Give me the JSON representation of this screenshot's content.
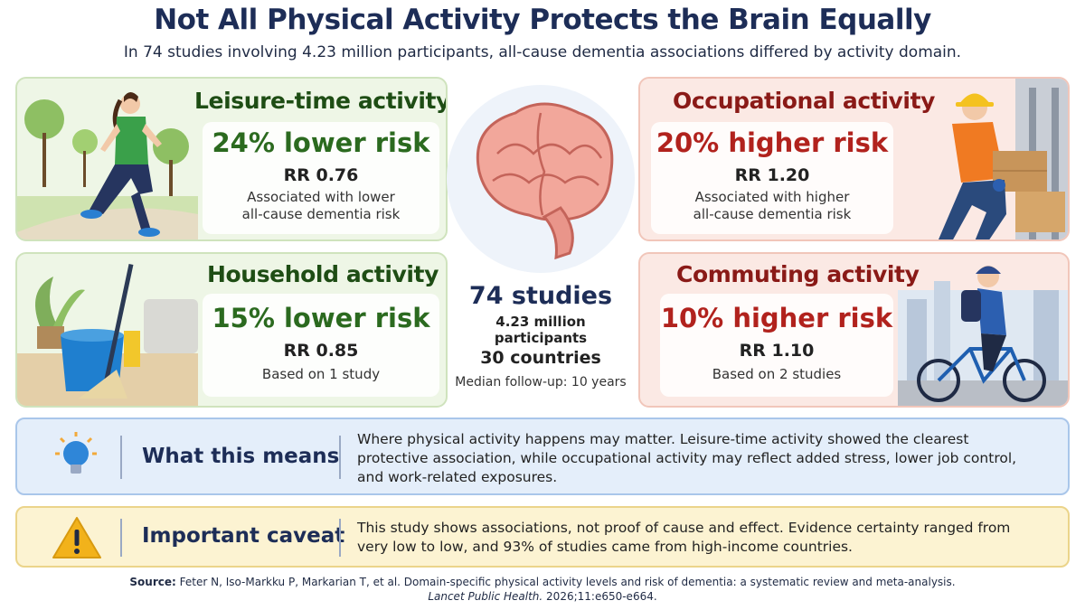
{
  "header": {
    "title": "Not All Physical Activity Protects the Brain Equally",
    "subtitle": "In 74 studies involving 4.23 million participants, all-cause dementia associations differed by activity domain."
  },
  "cards": {
    "leisure": {
      "heading": "Leisure-time activity",
      "risk": "24% lower risk",
      "rr": "RR 0.76",
      "desc_line1": "Associated with lower",
      "desc_line2": "all-cause dementia risk"
    },
    "occupational": {
      "heading": "Occupational activity",
      "risk": "20% higher risk",
      "rr": "RR 1.20",
      "desc_line1": "Associated with higher",
      "desc_line2": "all-cause dementia risk"
    },
    "household": {
      "heading": "Household activity",
      "risk": "15% lower risk",
      "rr": "RR 0.85",
      "desc_line1": "Based on 1 study"
    },
    "commuting": {
      "heading": "Commuting activity",
      "risk": "10% higher risk",
      "rr": "RR 1.10",
      "desc_line1": "Based on 2 studies"
    }
  },
  "center": {
    "studies": "74 studies",
    "participants": "4.23 million participants",
    "countries": "30 countries",
    "followup": "Median follow-up: 10 years"
  },
  "meaning": {
    "heading": "What this means",
    "line1": "Where physical activity happens may matter. Leisure-time activity showed the clearest",
    "line2": "protective association, while occupational activity may reflect added stress, lower job control,",
    "line3": "and work-related exposures."
  },
  "caveat": {
    "heading": "Important caveat",
    "line1": "This study shows associations, not proof of cause and effect. Evidence certainty ranged from",
    "line2": "very low to low, and 93% of studies came from high-income countries."
  },
  "source": {
    "label": "Source:",
    "text": "Feter N, Iso-Markku P, Markarian T, et al. Domain-specific physical activity levels and risk of dementia: a systematic review and meta-analysis.",
    "journal": "Lancet Public Health.",
    "citation": "2026;11:e650-e664."
  },
  "icons": {
    "brain": "brain-icon",
    "lightbulb": "lightbulb-icon",
    "warning": "warning-icon",
    "runner": "runner-illustration",
    "worker": "worker-illustration",
    "mop": "mop-bucket-illustration",
    "cyclist": "cyclist-illustration"
  },
  "colors": {
    "green_accent": "#2b6a1f",
    "red_accent": "#b1221d",
    "navy": "#1d2d57"
  }
}
